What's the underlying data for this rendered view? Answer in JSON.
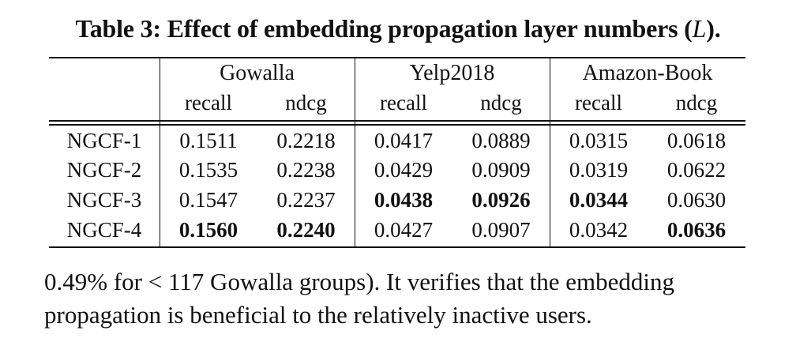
{
  "caption": {
    "text": "Table 3: Effect of embedding propagation layer numbers (",
    "symbol": "L",
    "close": ")."
  },
  "table": {
    "groups": [
      "Gowalla",
      "Yelp2018",
      "Amazon-Book"
    ],
    "metrics": [
      "recall",
      "ndcg",
      "recall",
      "ndcg",
      "recall",
      "ndcg"
    ],
    "rows": [
      {
        "label": "NGCF-1",
        "values": [
          "0.1511",
          "0.2218",
          "0.0417",
          "0.0889",
          "0.0315",
          "0.0618"
        ],
        "bold": [
          false,
          false,
          false,
          false,
          false,
          false
        ]
      },
      {
        "label": "NGCF-2",
        "values": [
          "0.1535",
          "0.2238",
          "0.0429",
          "0.0909",
          "0.0319",
          "0.0622"
        ],
        "bold": [
          false,
          false,
          false,
          false,
          false,
          false
        ]
      },
      {
        "label": "NGCF-3",
        "values": [
          "0.1547",
          "0.2237",
          "0.0438",
          "0.0926",
          "0.0344",
          "0.0630"
        ],
        "bold": [
          false,
          false,
          true,
          true,
          true,
          false
        ]
      },
      {
        "label": "NGCF-4",
        "values": [
          "0.1560",
          "0.2240",
          "0.0427",
          "0.0907",
          "0.0342",
          "0.0636"
        ],
        "bold": [
          true,
          true,
          false,
          false,
          false,
          true
        ]
      }
    ]
  },
  "paragraph": {
    "lines": [
      "0.49% for < 117 Gowalla groups). It verifies that the embedding",
      "propagation is beneficial to the relatively inactive users."
    ]
  }
}
